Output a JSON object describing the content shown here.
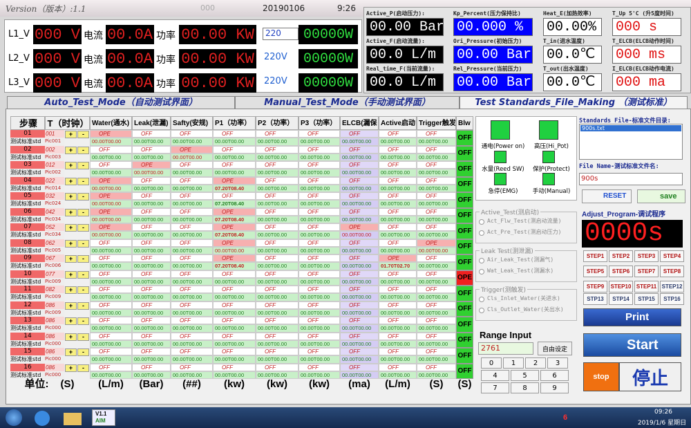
{
  "title_bar": {
    "version": "Version（版本）:1.1",
    "code": "000",
    "date": "20190106",
    "time": "9:26"
  },
  "power": {
    "rows": [
      {
        "phase": "L1_V",
        "voltage": "000 V",
        "current_label": "电流",
        "current": "00.0A",
        "power_label": "功率",
        "power": "00.00 KW",
        "select": "220",
        "watt": "00000W"
      },
      {
        "phase": "L2_V",
        "voltage": "000 V",
        "current_label": "电流",
        "current": "00.0A",
        "power_label": "功率",
        "power": "00.00 KW",
        "select": "220V",
        "watt": "00000W"
      },
      {
        "phase": "L3_V",
        "voltage": "000 V",
        "current_label": "电流",
        "current": "00.0A",
        "power_label": "功率",
        "power": "00.00 KW",
        "select": "220V",
        "watt": "00000W"
      }
    ]
  },
  "meters": [
    {
      "label": "Active_P(启动压力):",
      "value": "00.00 Bar"
    },
    {
      "label": "Active_F(启动流量):",
      "value": "00.0 L/m"
    },
    {
      "label": "Real_time_F(当前流量):",
      "value": "00.0 L/m"
    },
    {
      "label": "Kp_Percent(压力保持比)",
      "value": "00.000 %"
    },
    {
      "label": "Ori_Pressure(初始压力)",
      "value": "00.00 Bar"
    },
    {
      "label": "Rel_Pressure(当前压力)",
      "value": "00.00 Bar"
    },
    {
      "label": "Heat_E(加热效率)",
      "value": "00.00%"
    },
    {
      "label": "T_in(进水温度)",
      "value": "00.0℃"
    },
    {
      "label": "T_out(出水温度)",
      "value": "00.0℃"
    },
    {
      "label": "T_Up 5'C (升5度时间)",
      "value": "000 s"
    },
    {
      "label": "T_ELCB(ELCB动作时间)",
      "value": "000 ms"
    },
    {
      "label": "I_ELCB(ELCB动作电流)",
      "value": "000 ma"
    }
  ],
  "tabs": [
    "Auto_Test_Mode（自动测试界面）",
    "Manual_Test_Mode（手动测试界面）",
    "Test Standards_File_Making （测试标准）"
  ],
  "table": {
    "headers": [
      "步骤",
      "T（时钟）",
      "Water(通水)",
      "Leak(泄漏)",
      "Safty(安规)",
      "P1（功率）",
      "P2（功率）",
      "P3（功率）",
      "ELCB(漏保",
      "Active启动",
      "Trigger触发",
      "Blw"
    ],
    "std_label": "测试标准std",
    "plus": "+",
    "minus": "-",
    "rows": [
      {
        "step": "01",
        "t": "001",
        "pic": "Pic001",
        "cells": [
          [
            "OPE",
            "00.00T00.00"
          ],
          [
            "OFF",
            "00.00T00.00"
          ],
          [
            "OFF",
            "00.00T00.00"
          ],
          [
            "OFF",
            "00.00T00.00"
          ],
          [
            "OFF",
            "00.00T00.00"
          ],
          [
            "OFF",
            "00.00T00.00"
          ],
          [
            "OFF",
            "00.00T00.00"
          ],
          [
            "OFF",
            "00.00T00.00"
          ],
          [
            "OFF",
            "00.00T00.00"
          ]
        ],
        "blw": "OFF"
      },
      {
        "step": "02",
        "t": "002",
        "pic": "Pic003",
        "cells": [
          [
            "OFF",
            "00.00T00.00"
          ],
          [
            "OFF",
            "00.00T00.00"
          ],
          [
            "OPE",
            "00.00T00.00"
          ],
          [
            "OFF",
            "00.00T00.00"
          ],
          [
            "OFF",
            "00.00T00.00"
          ],
          [
            "OFF",
            "00.00T00.00"
          ],
          [
            "OFF",
            "00.00T00.00"
          ],
          [
            "OFF",
            "00.00T00.00"
          ],
          [
            "OFF",
            "00.00T00.00"
          ]
        ],
        "blw": "OFF"
      },
      {
        "step": "03",
        "t": "012",
        "pic": "Pic002",
        "cells": [
          [
            "OFF",
            "00.00T00.00"
          ],
          [
            "OPE",
            "00.00T00.00"
          ],
          [
            "OFF",
            "00.00T00.00"
          ],
          [
            "OFF",
            "00.00T00.00"
          ],
          [
            "OFF",
            "00.00T00.00"
          ],
          [
            "OFF",
            "00.00T00.00"
          ],
          [
            "OFF",
            "00.00T00.00"
          ],
          [
            "OFF",
            "00.00T00.00"
          ],
          [
            "OFF",
            "00.00T00.00"
          ]
        ],
        "blw": "OFF"
      },
      {
        "step": "04",
        "t": "022",
        "pic": "Pic014",
        "cells": [
          [
            "OPE",
            "00.00T00.00"
          ],
          [
            "OFF",
            "00.00T00.00"
          ],
          [
            "OFF",
            "00.00T00.00"
          ],
          [
            "OPE",
            "07.20T08.40"
          ],
          [
            "OFF",
            "00.00T00.00"
          ],
          [
            "OFF",
            "00.00T00.00"
          ],
          [
            "OFF",
            "00.00T00.00"
          ],
          [
            "OFF",
            "00.00T00.00"
          ],
          [
            "OFF",
            "00.00T00.00"
          ]
        ],
        "blw": "OFF"
      },
      {
        "step": "05",
        "t": "032",
        "pic": "Pic024",
        "cells": [
          [
            "OPE",
            "00.00T00.00"
          ],
          [
            "OFF",
            "00.00T00.00"
          ],
          [
            "OFF",
            "00.00T00.00"
          ],
          [
            "OFF",
            "07.20T08.40"
          ],
          [
            "OFF",
            "00.00T00.00"
          ],
          [
            "OFF",
            "00.00T00.00"
          ],
          [
            "OFF",
            "00.00T00.00"
          ],
          [
            "OFF",
            "00.00T00.00"
          ],
          [
            "OFF",
            "00.00T00.00"
          ]
        ],
        "blw": "OFF"
      },
      {
        "step": "06",
        "t": "042",
        "pic": "Pic034",
        "cells": [
          [
            "OPE",
            "00.00T00.00"
          ],
          [
            "OFF",
            "00.00T00.00"
          ],
          [
            "OFF",
            "00.00T00.00"
          ],
          [
            "OPE",
            "07.20T08.40"
          ],
          [
            "OFF",
            "00.00T00.00"
          ],
          [
            "OFF",
            "00.00T00.00"
          ],
          [
            "OFF",
            "00.00T00.00"
          ],
          [
            "OFF",
            "00.00T00.00"
          ],
          [
            "OFF",
            "00.00T00.00"
          ]
        ],
        "blw": "OFF"
      },
      {
        "step": "07",
        "t": "052",
        "pic": "Pic034",
        "cells": [
          [
            "OPE",
            "00.00T00.00"
          ],
          [
            "OFF",
            "00.00T00.00"
          ],
          [
            "OFF",
            "00.00T00.00"
          ],
          [
            "OPE",
            "07.20T08.40"
          ],
          [
            "OFF",
            "00.00T00.00"
          ],
          [
            "OFF",
            "00.00T00.00"
          ],
          [
            "OPE",
            "00.00T00.00"
          ],
          [
            "OFF",
            "00.00T00.00"
          ],
          [
            "OFF",
            "00.00T00.00"
          ]
        ],
        "blw": "OFF"
      },
      {
        "step": "08",
        "t": "062",
        "pic": "Pic005",
        "cells": [
          [
            "OFF",
            "00.00T00.00"
          ],
          [
            "OFF",
            "00.00T00.00"
          ],
          [
            "OFF",
            "00.00T00.00"
          ],
          [
            "OPE",
            "00.00T00.00"
          ],
          [
            "OFF",
            "00.00T00.00"
          ],
          [
            "OFF",
            "00.00T00.00"
          ],
          [
            "OFF",
            "00.00T00.00"
          ],
          [
            "OFF",
            "00.00T00.00"
          ],
          [
            "OPE",
            "00.00T00.00"
          ]
        ],
        "blw": "OFF"
      },
      {
        "step": "09",
        "t": "067",
        "pic": "Pic006",
        "cells": [
          [
            "OFF",
            "00.00T00.00"
          ],
          [
            "OFF",
            "00.00T00.00"
          ],
          [
            "OFF",
            "00.00T00.00"
          ],
          [
            "OPE",
            "07.20T08.40"
          ],
          [
            "OFF",
            "00.00T00.00"
          ],
          [
            "OFF",
            "00.00T00.00"
          ],
          [
            "OFF",
            "00.00T00.00"
          ],
          [
            "OPE",
            "01.70T02.70"
          ],
          [
            "OFF",
            "00.00T00.00"
          ]
        ],
        "blw": "OFF"
      },
      {
        "step": "10",
        "t": "077",
        "pic": "Pic009",
        "cells": [
          [
            "OFF",
            "00.00T00.00"
          ],
          [
            "OFF",
            "00.00T00.00"
          ],
          [
            "OFF",
            "00.00T00.00"
          ],
          [
            "OFF",
            "00.00T00.00"
          ],
          [
            "OFF",
            "00.00T00.00"
          ],
          [
            "OFF",
            "00.00T00.00"
          ],
          [
            "OFF",
            "00.00T00.00"
          ],
          [
            "OFF",
            "00.00T00.00"
          ],
          [
            "OFF",
            "00.00T00.00"
          ]
        ],
        "blw": "OPE"
      },
      {
        "step": "11",
        "t": "082",
        "pic": "Pic009",
        "cells": [
          [
            "OFF",
            "00.00T00.00"
          ],
          [
            "OFF",
            "00.00T00.00"
          ],
          [
            "OFF",
            "00.00T00.00"
          ],
          [
            "OFF",
            "00.00T00.00"
          ],
          [
            "OFF",
            "00.00T00.00"
          ],
          [
            "OFF",
            "00.00T00.00"
          ],
          [
            "OFF",
            "00.00T00.00"
          ],
          [
            "OFF",
            "00.00T00.00"
          ],
          [
            "OFF",
            "00.00T00.00"
          ]
        ],
        "blw": "OFF"
      },
      {
        "step": "12",
        "t": "086",
        "pic": "Pic009",
        "cells": [
          [
            "OFF",
            "00.00T00.00"
          ],
          [
            "OFF",
            "00.00T00.00"
          ],
          [
            "OFF",
            "00.00T00.00"
          ],
          [
            "OFF",
            "00.00T00.00"
          ],
          [
            "OFF",
            "00.00T00.00"
          ],
          [
            "OFF",
            "00.00T00.00"
          ],
          [
            "OFF",
            "00.00T00.00"
          ],
          [
            "OFF",
            "00.00T00.00"
          ],
          [
            "OFF",
            "00.00T00.00"
          ]
        ],
        "blw": "OFF"
      },
      {
        "step": "13",
        "t": "086",
        "pic": "Pic000",
        "cells": [
          [
            "OFF",
            "00.00T00.00"
          ],
          [
            "OFF",
            "00.00T00.00"
          ],
          [
            "OFF",
            "00.00T00.00"
          ],
          [
            "OFF",
            "00.00T00.00"
          ],
          [
            "OFF",
            "00.00T00.00"
          ],
          [
            "OFF",
            "00.00T00.00"
          ],
          [
            "OFF",
            "00.00T00.00"
          ],
          [
            "OFF",
            "00.00T00.00"
          ],
          [
            "OFF",
            "00.00T00.00"
          ]
        ],
        "blw": "OFF"
      },
      {
        "step": "14",
        "t": "086",
        "pic": "Pic000",
        "cells": [
          [
            "OFF",
            "00.00T00.00"
          ],
          [
            "OFF",
            "00.00T00.00"
          ],
          [
            "OFF",
            "00.00T00.00"
          ],
          [
            "OFF",
            "00.00T00.00"
          ],
          [
            "OFF",
            "00.00T00.00"
          ],
          [
            "OFF",
            "00.00T00.00"
          ],
          [
            "OFF",
            "00.00T00.00"
          ],
          [
            "OFF",
            "00.00T00.00"
          ],
          [
            "OFF",
            "00.00T00.00"
          ]
        ],
        "blw": "OFF"
      },
      {
        "step": "15",
        "t": "086",
        "pic": "Pic000",
        "cells": [
          [
            "OFF",
            "00.00T00.00"
          ],
          [
            "OFF",
            "00.00T00.00"
          ],
          [
            "OFF",
            "00.00T00.00"
          ],
          [
            "OFF",
            "00.00T00.00"
          ],
          [
            "OFF",
            "00.00T00.00"
          ],
          [
            "OFF",
            "00.00T00.00"
          ],
          [
            "OFF",
            "00.00T00.00"
          ],
          [
            "OFF",
            "00.00T00.00"
          ],
          [
            "OFF",
            "00.00T00.00"
          ]
        ],
        "blw": "OFF"
      },
      {
        "step": "16",
        "t": "086",
        "pic": "Pic000",
        "cells": [
          [
            "OFF",
            "00.00T00.00"
          ],
          [
            "OFF",
            "00.00T00.00"
          ],
          [
            "OFF",
            "00.00T00.00"
          ],
          [
            "OFF",
            "00.00T00.00"
          ],
          [
            "OFF",
            "00.00T00.00"
          ],
          [
            "OFF",
            "00.00T00.00"
          ],
          [
            "OFF",
            "00.00T00.00"
          ],
          [
            "OFF",
            "00.00T00.00"
          ],
          [
            "OFF",
            "00.00T00.00"
          ]
        ],
        "blw": "OFF"
      }
    ]
  },
  "units": [
    "单位:",
    "(S)",
    "(L/m)",
    "(Bar)",
    "(##)",
    "(kw)",
    "(kw)",
    "(kw)",
    "(ma)",
    "(L/m)",
    "(S)",
    "(S)"
  ],
  "indicators": [
    "通电(Power on)",
    "高压(Hi_Pot)",
    "水量(Reed SW)",
    "保护(Protect)",
    "急停(EMG)",
    "手动(Manual)"
  ],
  "groups": [
    {
      "title": "Active_Test(测启动)",
      "options": [
        "Act_Flw_Test(测启动流量)",
        "Act_Pre_Test(测启动压力)"
      ]
    },
    {
      "title": "Leak Test(测泄漏)",
      "options": [
        "Air_Leak_Test(测漏气)",
        "Wat_Leak_Test(测漏水)"
      ]
    },
    {
      "title": "Trigger(测触发)",
      "options": [
        "Cls_Inlet_Water(关进水)",
        "Cls_Outlet_Water(关出水)"
      ]
    }
  ],
  "range_input": {
    "title": "Range Input",
    "value": "2761",
    "button": "自由设定",
    "keys": [
      [
        "0",
        "1",
        "2",
        "3"
      ],
      [
        "4",
        "5",
        "6"
      ],
      [
        "7",
        "8",
        "9"
      ]
    ]
  },
  "files": {
    "dir_label": "Standards File-标准文件目录:",
    "files": [
      "900s.txt"
    ],
    "name_label": "File Name-测试标准文件名:",
    "name": "900s",
    "reset": "RESET",
    "save": "save"
  },
  "adjust": {
    "title": "Adjust_Program-调试程序",
    "display": "0000s",
    "steps": [
      "STEP1",
      "STEP2",
      "STEP3",
      "STEP4",
      "STEP5",
      "STEP6",
      "STEP7",
      "STEP8",
      "STEP9",
      "STEP10",
      "STEP11",
      "STEP12",
      "STP13",
      "STP14",
      "STP15",
      "STP16"
    ]
  },
  "actions": {
    "print": "Print",
    "start": "Start",
    "stop": "stop",
    "stop_cn": "停止"
  },
  "taskbar": {
    "app": "V1.1",
    "app_sub": "AIM",
    "tray": "6",
    "time": "09:26",
    "date": "2019/1/6 星期日"
  }
}
